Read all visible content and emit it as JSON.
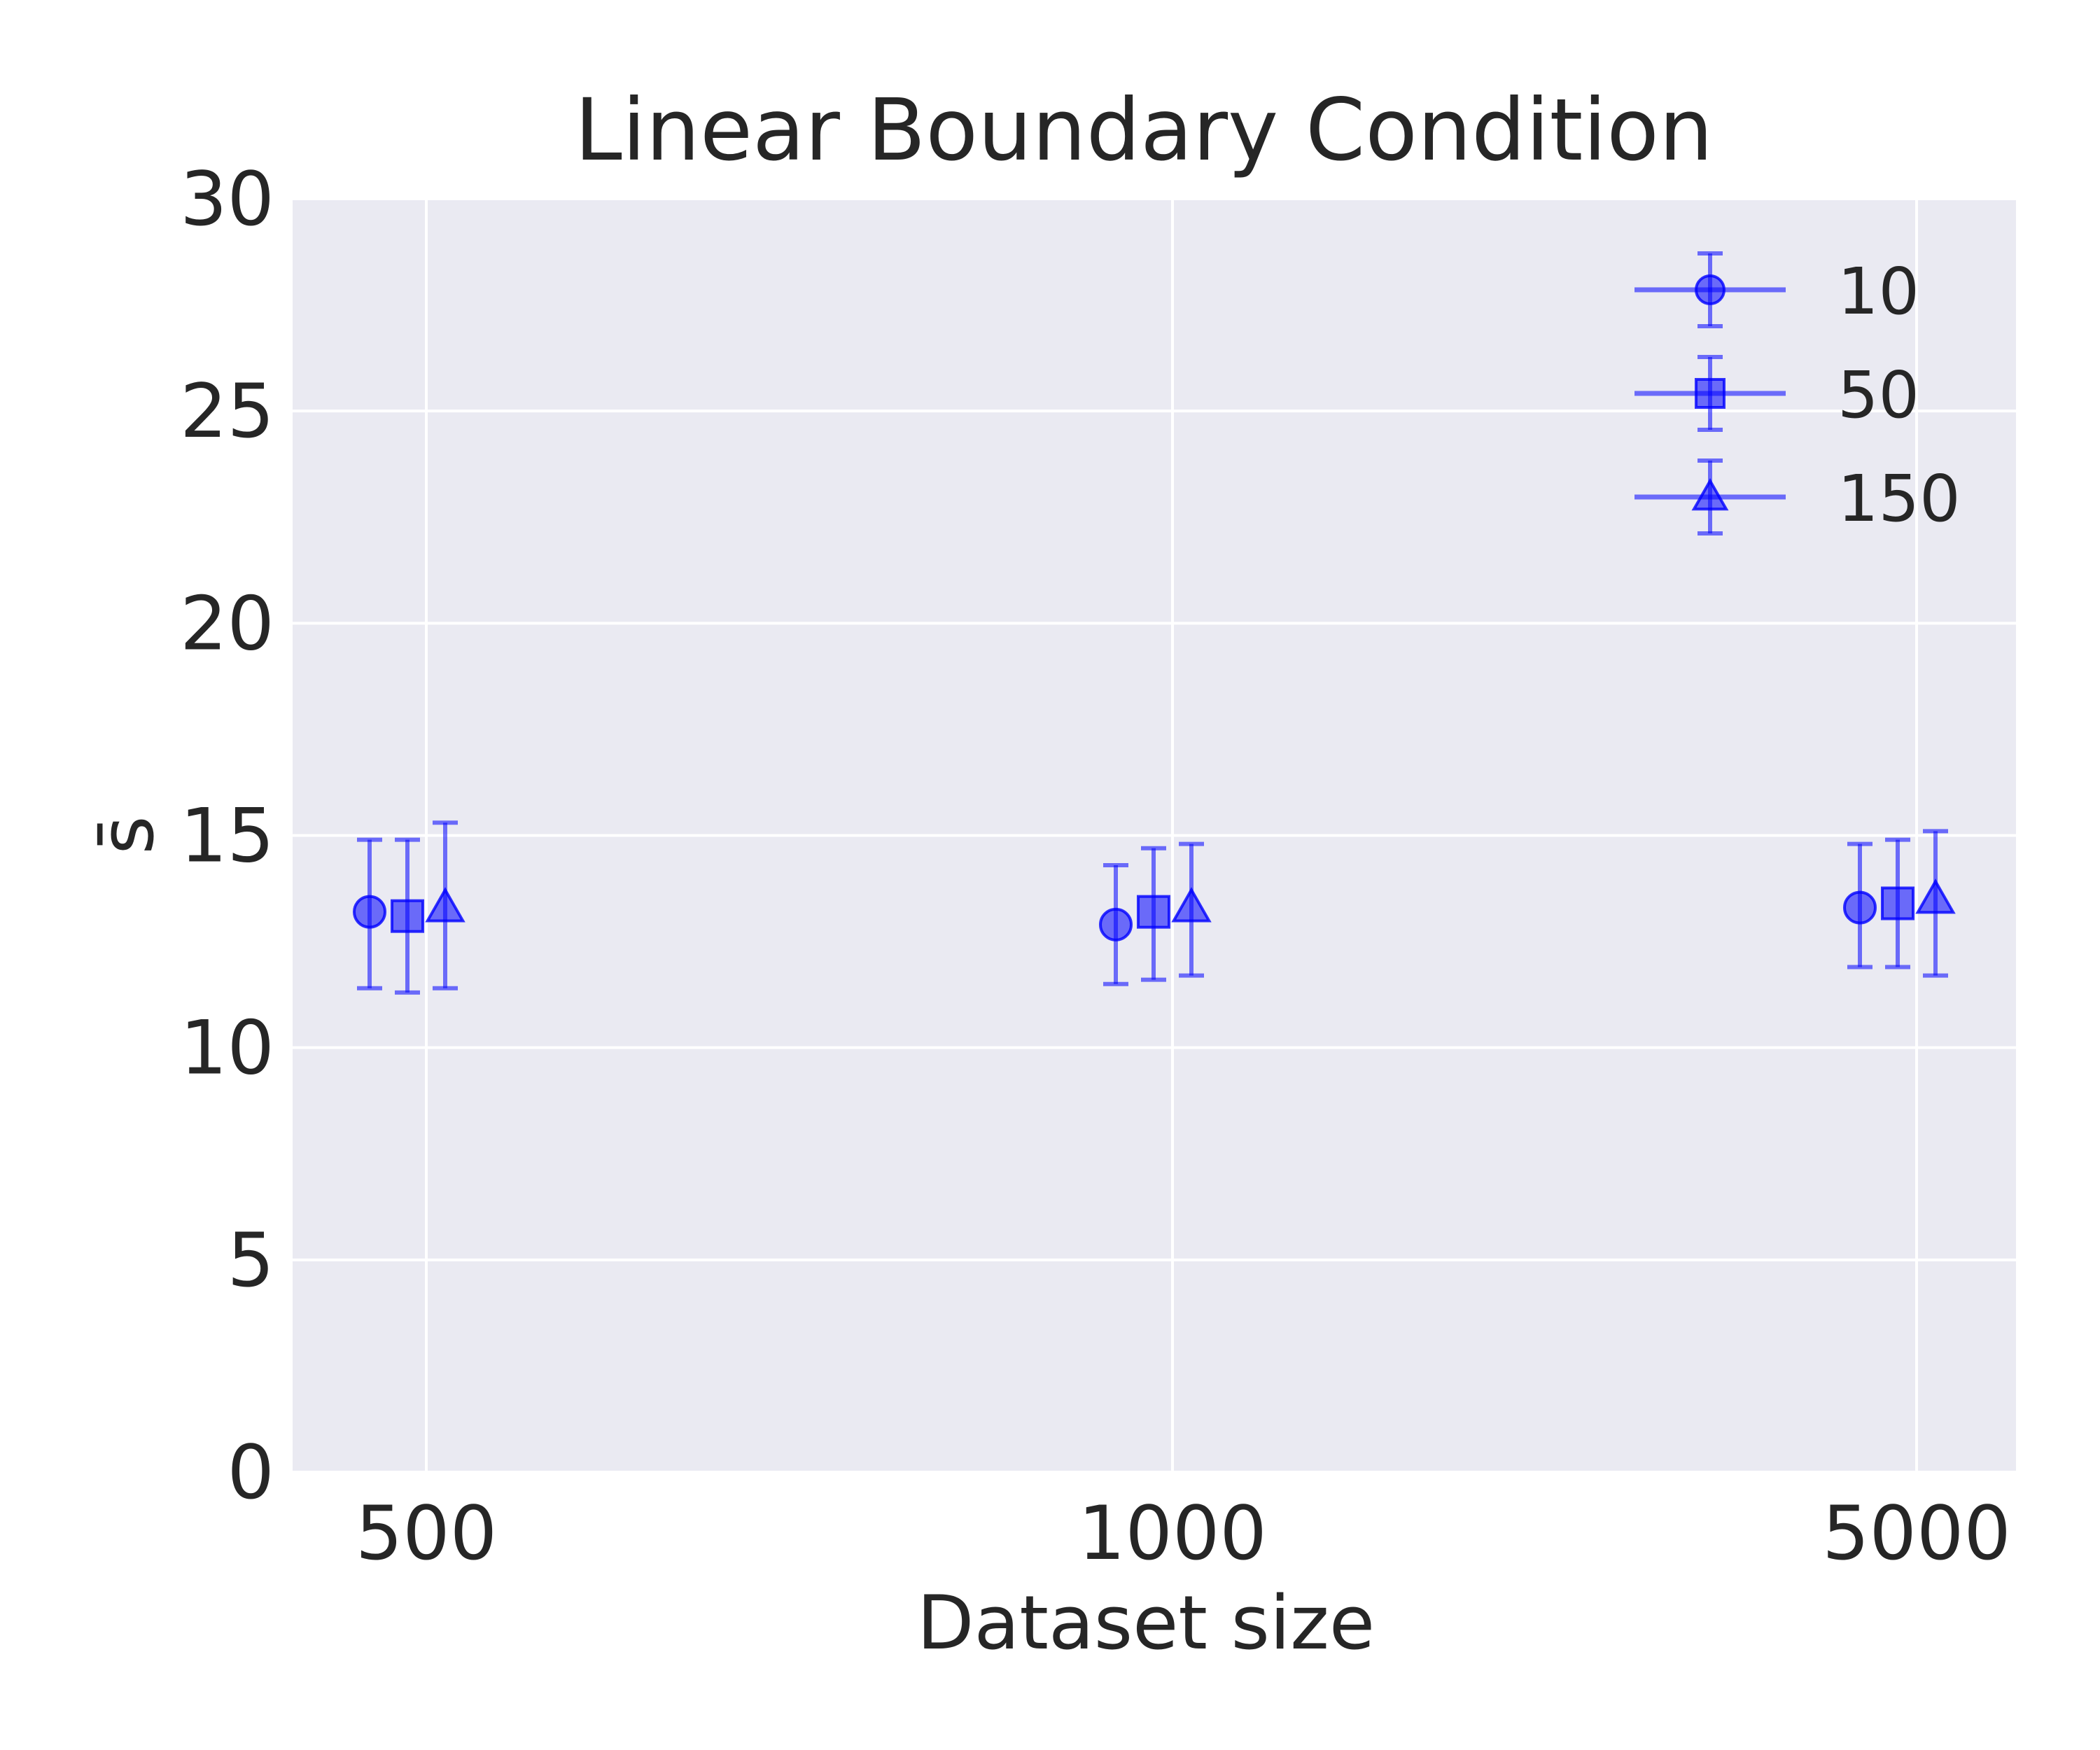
{
  "chart_data": {
    "type": "scatter",
    "title": "Linear Boundary Condition",
    "xlabel": "Dataset size",
    "ylabel": "s̄",
    "categories": [
      "500",
      "1000",
      "5000"
    ],
    "ylim": [
      0,
      30
    ],
    "yticks": [
      0,
      5,
      10,
      15,
      20,
      25,
      30
    ],
    "grid": true,
    "legend_position": "top-right",
    "series": [
      {
        "name": "10",
        "marker": "circle",
        "values": [
          13.2,
          12.9,
          13.3
        ],
        "err_low": [
          11.4,
          11.5,
          11.9
        ],
        "err_high": [
          14.9,
          14.3,
          14.8
        ]
      },
      {
        "name": "50",
        "marker": "square",
        "values": [
          13.1,
          13.2,
          13.4
        ],
        "err_low": [
          11.3,
          11.6,
          11.9
        ],
        "err_high": [
          14.9,
          14.7,
          14.9
        ]
      },
      {
        "name": "150",
        "marker": "triangle",
        "values": [
          13.3,
          13.3,
          13.5
        ],
        "err_low": [
          11.4,
          11.7,
          11.7
        ],
        "err_high": [
          15.3,
          14.8,
          15.1
        ]
      }
    ],
    "colors": {
      "series": "#0000ff",
      "background": "#eaeaf2",
      "grid": "#ffffff",
      "text": "#262626"
    }
  }
}
